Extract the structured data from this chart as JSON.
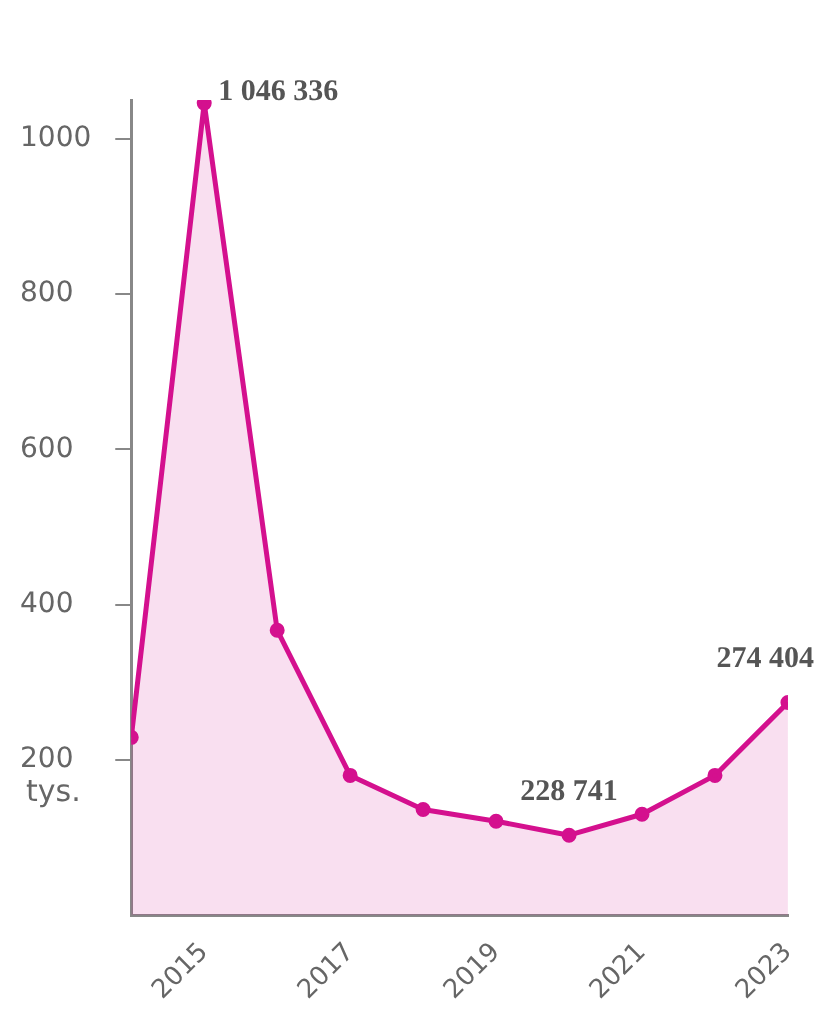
{
  "chart_data": {
    "type": "area",
    "ylabel": "tys.",
    "x": [
      2014,
      2015,
      2016,
      2017,
      2018,
      2019,
      2020,
      2021,
      2022,
      2023
    ],
    "series": [
      {
        "color": "#d4108e",
        "values": [
          229,
          1046,
          367,
          180,
          136,
          121,
          103,
          130,
          180,
          274
        ]
      }
    ],
    "xlim": [
      2014,
      2023
    ],
    "xticks": [
      2015,
      2017,
      2019,
      2021,
      2023
    ],
    "ylim": [
      0,
      1050
    ],
    "yticks": [
      200,
      400,
      600,
      800,
      1000
    ],
    "grid": false,
    "legend": false,
    "marker": "circle",
    "annotations": [
      {
        "text": "1 046 336",
        "x": 2015,
        "y": 1046
      },
      {
        "text": "228 741",
        "x": 2020,
        "y": 103
      },
      {
        "text": "274 404",
        "x": 2023,
        "y": 274
      }
    ]
  }
}
